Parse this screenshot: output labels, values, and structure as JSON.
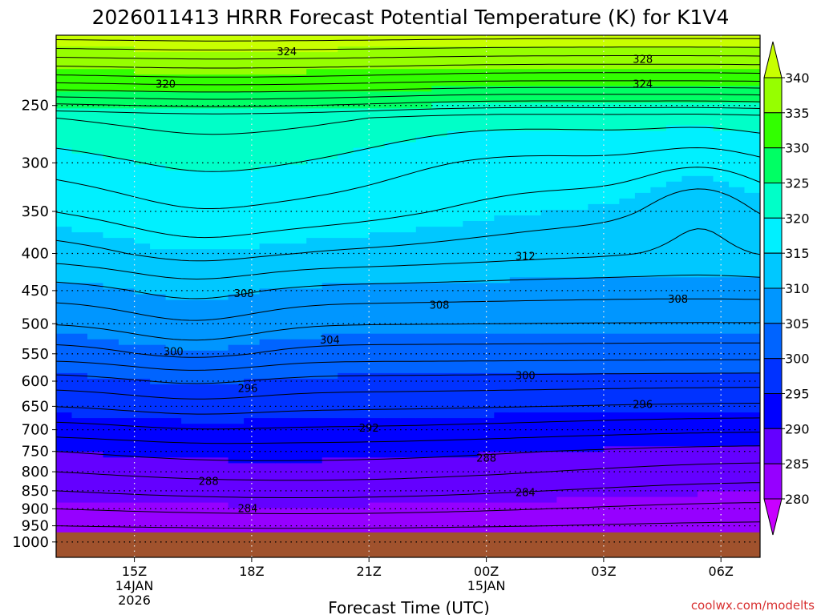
{
  "chart_data": {
    "type": "heatmap",
    "title": "2026011413 HRRR Forecast Potential Temperature (K) for K1V4",
    "xlabel": "Forecast Time (UTC)",
    "ylabel": "",
    "credit": "coolwx.com/modelts",
    "x_range_hours": [
      13.0,
      31.0
    ],
    "y_range_hpa": [
      200,
      1050
    ],
    "y_scale": "log",
    "y_ticks": [
      250,
      300,
      350,
      400,
      450,
      500,
      550,
      600,
      650,
      700,
      750,
      800,
      850,
      900,
      950,
      1000
    ],
    "x_ticks": [
      {
        "hour": 15,
        "label": "15Z",
        "sub": [
          "14JAN",
          "2026"
        ]
      },
      {
        "hour": 18,
        "label": "18Z",
        "sub": []
      },
      {
        "hour": 21,
        "label": "21Z",
        "sub": []
      },
      {
        "hour": 24,
        "label": "00Z",
        "sub": [
          "15JAN"
        ]
      },
      {
        "hour": 27,
        "label": "03Z",
        "sub": []
      },
      {
        "hour": 30,
        "label": "06Z",
        "sub": []
      }
    ],
    "grid": true,
    "ground_color": "#a0522d",
    "colorbar": {
      "levels": [
        280,
        285,
        290,
        295,
        300,
        305,
        310,
        315,
        320,
        325,
        330,
        335,
        340
      ],
      "colors": [
        "#c800ff",
        "#9600ff",
        "#6400ff",
        "#0000ff",
        "#0032ff",
        "#0064ff",
        "#0096ff",
        "#00c8ff",
        "#00f0ff",
        "#00ffc8",
        "#00ff64",
        "#32ff00",
        "#96ff00",
        "#c8ff00"
      ],
      "labels": [
        "280",
        "285",
        "290",
        "295",
        "300",
        "305",
        "310",
        "315",
        "320",
        "325",
        "330",
        "335",
        "340"
      ]
    },
    "contour_labels": [
      {
        "text": "324",
        "hour": 18.9,
        "hpa": 211
      },
      {
        "text": "328",
        "hour": 28.0,
        "hpa": 216
      },
      {
        "text": "320",
        "hour": 15.8,
        "hpa": 234
      },
      {
        "text": "324",
        "hour": 28.0,
        "hpa": 234
      },
      {
        "text": "312",
        "hour": 25.0,
        "hpa": 404
      },
      {
        "text": "308",
        "hour": 17.8,
        "hpa": 455
      },
      {
        "text": "308",
        "hour": 22.8,
        "hpa": 472
      },
      {
        "text": "308",
        "hour": 28.9,
        "hpa": 463
      },
      {
        "text": "304",
        "hour": 20.0,
        "hpa": 527
      },
      {
        "text": "300",
        "hour": 16.0,
        "hpa": 547
      },
      {
        "text": "300",
        "hour": 25.0,
        "hpa": 590
      },
      {
        "text": "296",
        "hour": 17.9,
        "hpa": 615
      },
      {
        "text": "296",
        "hour": 28.0,
        "hpa": 647
      },
      {
        "text": "292",
        "hour": 21.0,
        "hpa": 697
      },
      {
        "text": "288",
        "hour": 24.0,
        "hpa": 767
      },
      {
        "text": "288",
        "hour": 16.9,
        "hpa": 826
      },
      {
        "text": "284",
        "hour": 25.0,
        "hpa": 856
      },
      {
        "text": "284",
        "hour": 17.9,
        "hpa": 900
      }
    ]
  }
}
